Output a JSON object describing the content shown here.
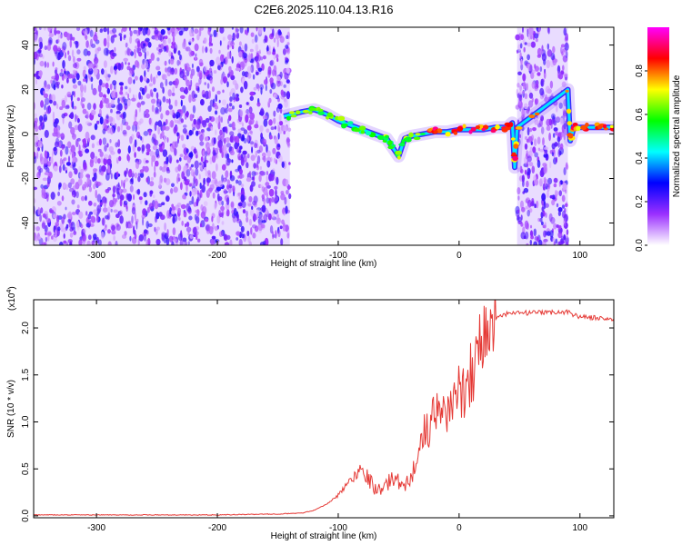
{
  "figure": {
    "title": "C2E6.2025.110.04.13.R16"
  },
  "chart_data": [
    {
      "type": "heatmap",
      "xlabel": "Height of straight line (km)",
      "ylabel": "Frequency (Hz)",
      "xlim": [
        -352,
        128
      ],
      "ylim": [
        -50,
        48
      ],
      "x_ticks": [
        -300,
        -200,
        -100,
        0,
        100
      ],
      "y_ticks": [
        -40,
        -20,
        0,
        20,
        40
      ],
      "colorbar": {
        "label": "Normalized spectral amplitude",
        "range": [
          0,
          1
        ],
        "ticks": [
          0.0,
          0.2,
          0.4,
          0.6,
          0.8
        ],
        "tick_labels": [
          "0.0",
          "0.2",
          "0.4",
          "0.6",
          "0.8"
        ],
        "colors": [
          "#ffffff",
          "#9b30ff",
          "#0000ff",
          "#00ffff",
          "#00ff00",
          "#ffff00",
          "#ff0000",
          "#ff00ff"
        ]
      },
      "noise_regions": [
        {
          "x_range": [
            -352,
            -140
          ],
          "level": "high"
        },
        {
          "x_range": [
            48,
            90
          ],
          "level": "high"
        }
      ],
      "signal_track": {
        "x": [
          -145,
          -130,
          -120,
          -110,
          -100,
          -90,
          -80,
          -70,
          -60,
          -55,
          -50,
          -45,
          -40,
          -30,
          -20,
          -10,
          0,
          10,
          20,
          30,
          40,
          44,
          46,
          48,
          90,
          92,
          95,
          100,
          110,
          120,
          128
        ],
        "y": [
          8,
          10,
          11,
          9,
          6,
          4,
          2,
          0,
          -2,
          -6,
          -10,
          -2,
          -1,
          0,
          1,
          1,
          2,
          2,
          2,
          3,
          3,
          5,
          -15,
          3,
          20,
          -3,
          3,
          3,
          3,
          3,
          3
        ]
      }
    },
    {
      "type": "line",
      "xlabel": "Height of straight line (km)",
      "ylabel": "SNR (10 * v/v)",
      "scale_note": "(x10",
      "scale_exponent": "4",
      "xlim": [
        -352,
        128
      ],
      "ylim": [
        -0.02,
        2.3
      ],
      "x_ticks": [
        -300,
        -200,
        -100,
        0,
        100
      ],
      "y_ticks": [
        0.0,
        0.5,
        1.0,
        1.5,
        2.0
      ],
      "y_tick_labels": [
        "0.0",
        "0.5",
        "1.0",
        "1.5",
        "2.0"
      ],
      "color": "#e53935",
      "x": [
        -352,
        -300,
        -250,
        -200,
        -150,
        -130,
        -120,
        -110,
        -100,
        -95,
        -90,
        -85,
        -80,
        -75,
        -70,
        -65,
        -60,
        -55,
        -50,
        -45,
        -40,
        -35,
        -30,
        -25,
        -20,
        -15,
        -10,
        -5,
        0,
        5,
        10,
        15,
        20,
        25,
        30,
        40,
        50,
        60,
        70,
        80,
        90,
        95,
        100,
        110,
        120,
        128
      ],
      "values": [
        0.01,
        0.01,
        0.01,
        0.01,
        0.02,
        0.03,
        0.06,
        0.12,
        0.22,
        0.3,
        0.38,
        0.45,
        0.52,
        0.4,
        0.3,
        0.28,
        0.33,
        0.4,
        0.38,
        0.3,
        0.42,
        0.6,
        0.85,
        0.95,
        1.05,
        1.1,
        1.15,
        1.2,
        1.3,
        1.4,
        1.55,
        1.75,
        1.9,
        2.0,
        2.1,
        2.15,
        2.16,
        2.16,
        2.16,
        2.17,
        2.17,
        2.14,
        2.12,
        2.11,
        2.1,
        2.09
      ]
    }
  ]
}
